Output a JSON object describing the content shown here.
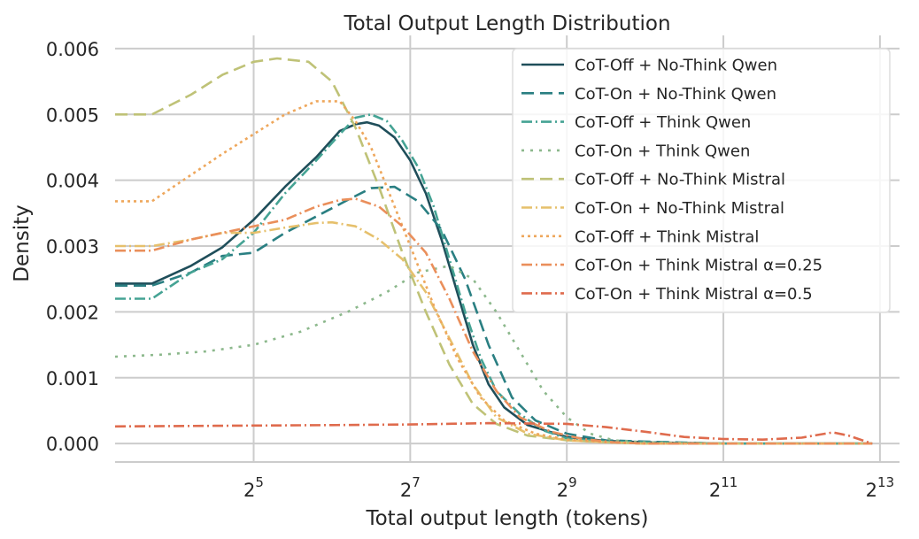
{
  "chart_data": {
    "type": "line",
    "title": "Total Output Length Distribution",
    "xlabel": "Total output length (tokens)",
    "ylabel": "Density",
    "xscale": "log2",
    "xlim_log2": [
      3.23,
      13.25
    ],
    "ylim": [
      -0.00028,
      0.0062
    ],
    "grid": true,
    "legend_position": "top-right",
    "xticks": [
      {
        "base": "2",
        "exp": "5",
        "value_log2": 5
      },
      {
        "base": "2",
        "exp": "7",
        "value_log2": 7
      },
      {
        "base": "2",
        "exp": "9",
        "value_log2": 9
      },
      {
        "base": "2",
        "exp": "11",
        "value_log2": 11
      },
      {
        "base": "2",
        "exp": "13",
        "value_log2": 13
      }
    ],
    "yticks": [
      {
        "label": "0.000",
        "value": 0.0
      },
      {
        "label": "0.001",
        "value": 0.001
      },
      {
        "label": "0.002",
        "value": 0.002
      },
      {
        "label": "0.003",
        "value": 0.003
      },
      {
        "label": "0.004",
        "value": 0.004
      },
      {
        "label": "0.005",
        "value": 0.005
      },
      {
        "label": "0.006",
        "value": 0.006
      }
    ],
    "series": [
      {
        "name": "CoT-Off + No-Think Qwen",
        "color": "#1f4e5a",
        "dash": "",
        "points": [
          [
            3.23,
            0.00243
          ],
          [
            3.7,
            0.00243
          ],
          [
            4.2,
            0.0027
          ],
          [
            4.6,
            0.00298
          ],
          [
            5.0,
            0.0034
          ],
          [
            5.4,
            0.0039
          ],
          [
            5.8,
            0.00435
          ],
          [
            6.1,
            0.00475
          ],
          [
            6.3,
            0.00485
          ],
          [
            6.45,
            0.00488
          ],
          [
            6.6,
            0.00483
          ],
          [
            6.8,
            0.00465
          ],
          [
            7.0,
            0.0043
          ],
          [
            7.2,
            0.0038
          ],
          [
            7.4,
            0.0031
          ],
          [
            7.6,
            0.0023
          ],
          [
            7.8,
            0.0015
          ],
          [
            8.0,
            0.0009
          ],
          [
            8.2,
            0.00055
          ],
          [
            8.5,
            0.00028
          ],
          [
            9.0,
            0.0001
          ],
          [
            9.5,
            4e-05
          ],
          [
            10.0,
            2e-05
          ],
          [
            11.0,
            0.0
          ],
          [
            12.0,
            0.0
          ],
          [
            12.9,
            0.0
          ]
        ]
      },
      {
        "name": "CoT-On + No-Think Qwen",
        "color": "#2a7f82",
        "dash": "14 7",
        "points": [
          [
            3.23,
            0.0024
          ],
          [
            3.7,
            0.0024
          ],
          [
            4.2,
            0.0026
          ],
          [
            4.6,
            0.00285
          ],
          [
            5.0,
            0.0029
          ],
          [
            5.4,
            0.0032
          ],
          [
            5.8,
            0.00345
          ],
          [
            6.2,
            0.0037
          ],
          [
            6.5,
            0.00388
          ],
          [
            6.8,
            0.0039
          ],
          [
            7.1,
            0.00368
          ],
          [
            7.4,
            0.00325
          ],
          [
            7.7,
            0.0025
          ],
          [
            8.0,
            0.0015
          ],
          [
            8.3,
            0.0007
          ],
          [
            8.6,
            0.00035
          ],
          [
            9.0,
            0.00015
          ],
          [
            9.5,
            5e-05
          ],
          [
            10.0,
            3e-05
          ],
          [
            11.0,
            0.0
          ],
          [
            12.0,
            0.0
          ],
          [
            12.9,
            0.0
          ]
        ]
      },
      {
        "name": "CoT-Off + Think Qwen",
        "color": "#45a394",
        "dash": "12 4 2 4",
        "points": [
          [
            3.23,
            0.0022
          ],
          [
            3.7,
            0.0022
          ],
          [
            4.2,
            0.0026
          ],
          [
            4.6,
            0.0028
          ],
          [
            5.0,
            0.0032
          ],
          [
            5.4,
            0.0038
          ],
          [
            5.8,
            0.0043
          ],
          [
            6.1,
            0.0047
          ],
          [
            6.3,
            0.00495
          ],
          [
            6.5,
            0.005
          ],
          [
            6.7,
            0.0049
          ],
          [
            6.9,
            0.0046
          ],
          [
            7.1,
            0.0042
          ],
          [
            7.3,
            0.0036
          ],
          [
            7.5,
            0.0028
          ],
          [
            7.7,
            0.002
          ],
          [
            7.9,
            0.0013
          ],
          [
            8.1,
            0.0008
          ],
          [
            8.4,
            0.00045
          ],
          [
            8.7,
            0.0002
          ],
          [
            9.0,
            8e-05
          ],
          [
            9.5,
            3e-05
          ],
          [
            10.0,
            2e-05
          ],
          [
            11.0,
            0.0
          ],
          [
            12.0,
            0.0
          ],
          [
            12.9,
            0.0
          ]
        ]
      },
      {
        "name": "CoT-On + Think Qwen",
        "color": "#8cb88c",
        "dash": "3 7",
        "points": [
          [
            3.23,
            0.00132
          ],
          [
            3.8,
            0.00135
          ],
          [
            4.4,
            0.0014
          ],
          [
            5.0,
            0.0015
          ],
          [
            5.6,
            0.0017
          ],
          [
            6.2,
            0.002
          ],
          [
            6.7,
            0.0023
          ],
          [
            7.1,
            0.0026
          ],
          [
            7.5,
            0.0027
          ],
          [
            7.8,
            0.0025
          ],
          [
            8.1,
            0.002
          ],
          [
            8.4,
            0.0014
          ],
          [
            8.7,
            0.0008
          ],
          [
            9.0,
            0.0004
          ],
          [
            9.3,
            0.00015
          ],
          [
            9.6,
            5e-05
          ],
          [
            10.0,
            2e-05
          ],
          [
            11.0,
            0.0
          ],
          [
            12.0,
            0.0
          ],
          [
            12.9,
            0.0
          ]
        ]
      },
      {
        "name": "CoT-Off + No-Think Mistral",
        "color": "#bfc277",
        "dash": "14 7",
        "points": [
          [
            3.23,
            0.005
          ],
          [
            3.7,
            0.005
          ],
          [
            4.2,
            0.0053
          ],
          [
            4.6,
            0.0056
          ],
          [
            5.0,
            0.0058
          ],
          [
            5.3,
            0.00585
          ],
          [
            5.7,
            0.0058
          ],
          [
            6.0,
            0.0055
          ],
          [
            6.3,
            0.0048
          ],
          [
            6.6,
            0.0039
          ],
          [
            6.9,
            0.0029
          ],
          [
            7.2,
            0.002
          ],
          [
            7.5,
            0.0012
          ],
          [
            7.8,
            0.0006
          ],
          [
            8.1,
            0.0003
          ],
          [
            8.5,
            0.00012
          ],
          [
            9.0,
            5e-05
          ],
          [
            9.5,
            2e-05
          ],
          [
            10.0,
            0.0
          ],
          [
            11.0,
            0.0
          ],
          [
            12.0,
            0.0
          ],
          [
            12.9,
            0.0
          ]
        ]
      },
      {
        "name": "CoT-On + No-Think Mistral",
        "color": "#e6c06c",
        "dash": "12 4 2 4",
        "points": [
          [
            3.23,
            0.003
          ],
          [
            3.7,
            0.003
          ],
          [
            4.2,
            0.0031
          ],
          [
            4.6,
            0.0032
          ],
          [
            5.0,
            0.0032
          ],
          [
            5.4,
            0.00328
          ],
          [
            5.8,
            0.00335
          ],
          [
            6.0,
            0.00336
          ],
          [
            6.3,
            0.0033
          ],
          [
            6.6,
            0.0031
          ],
          [
            6.9,
            0.0028
          ],
          [
            7.2,
            0.0023
          ],
          [
            7.5,
            0.0016
          ],
          [
            7.8,
            0.0009
          ],
          [
            8.1,
            0.0004
          ],
          [
            8.5,
            0.00015
          ],
          [
            9.0,
            5e-05
          ],
          [
            9.5,
            2e-05
          ],
          [
            10.0,
            0.0
          ],
          [
            11.0,
            0.0
          ],
          [
            12.0,
            0.0
          ],
          [
            12.9,
            0.0
          ]
        ]
      },
      {
        "name": "CoT-Off + Think Mistral",
        "color": "#eea75c",
        "dash": "3 4",
        "points": [
          [
            3.23,
            0.00368
          ],
          [
            3.7,
            0.00368
          ],
          [
            4.1,
            0.004
          ],
          [
            4.6,
            0.0044
          ],
          [
            5.0,
            0.0047
          ],
          [
            5.4,
            0.005
          ],
          [
            5.8,
            0.0052
          ],
          [
            6.1,
            0.0052
          ],
          [
            6.3,
            0.0049
          ],
          [
            6.5,
            0.0045
          ],
          [
            6.7,
            0.0039
          ],
          [
            7.0,
            0.003
          ],
          [
            7.3,
            0.0021
          ],
          [
            7.6,
            0.0013
          ],
          [
            7.9,
            0.0007
          ],
          [
            8.2,
            0.00035
          ],
          [
            8.6,
            0.00015
          ],
          [
            9.0,
            6e-05
          ],
          [
            9.5,
            2e-05
          ],
          [
            10.0,
            0.0
          ],
          [
            11.0,
            0.0
          ],
          [
            12.0,
            0.0
          ],
          [
            12.9,
            0.0
          ]
        ]
      },
      {
        "name": "CoT-On + Think Mistral α=0.25",
        "color": "#ea8f5b",
        "dash": "12 4 2 4",
        "points": [
          [
            3.23,
            0.00293
          ],
          [
            3.7,
            0.00293
          ],
          [
            4.2,
            0.0031
          ],
          [
            4.6,
            0.0032
          ],
          [
            5.0,
            0.0033
          ],
          [
            5.4,
            0.0034
          ],
          [
            5.8,
            0.0036
          ],
          [
            6.1,
            0.0037
          ],
          [
            6.3,
            0.00372
          ],
          [
            6.6,
            0.0036
          ],
          [
            6.9,
            0.0033
          ],
          [
            7.2,
            0.0029
          ],
          [
            7.5,
            0.0022
          ],
          [
            7.8,
            0.0014
          ],
          [
            8.1,
            0.0008
          ],
          [
            8.4,
            0.0004
          ],
          [
            8.8,
            0.00018
          ],
          [
            9.2,
            7e-05
          ],
          [
            9.6,
            2e-05
          ],
          [
            10.0,
            0.0
          ],
          [
            11.0,
            0.0
          ],
          [
            12.0,
            0.0
          ],
          [
            12.9,
            0.0
          ]
        ]
      },
      {
        "name": "CoT-On + Think Mistral α=0.5",
        "color": "#df6b4d",
        "dash": "12 4 2 4",
        "points": [
          [
            3.23,
            0.00026
          ],
          [
            4.5,
            0.00027
          ],
          [
            6.0,
            0.00028
          ],
          [
            7.0,
            0.00029
          ],
          [
            8.0,
            0.00031
          ],
          [
            9.0,
            0.0003
          ],
          [
            9.5,
            0.00025
          ],
          [
            10.0,
            0.00018
          ],
          [
            10.5,
            0.0001
          ],
          [
            11.0,
            7e-05
          ],
          [
            11.5,
            6e-05
          ],
          [
            12.0,
            9e-05
          ],
          [
            12.4,
            0.00017
          ],
          [
            12.6,
            0.00012
          ],
          [
            12.9,
            0.0
          ]
        ]
      }
    ]
  }
}
